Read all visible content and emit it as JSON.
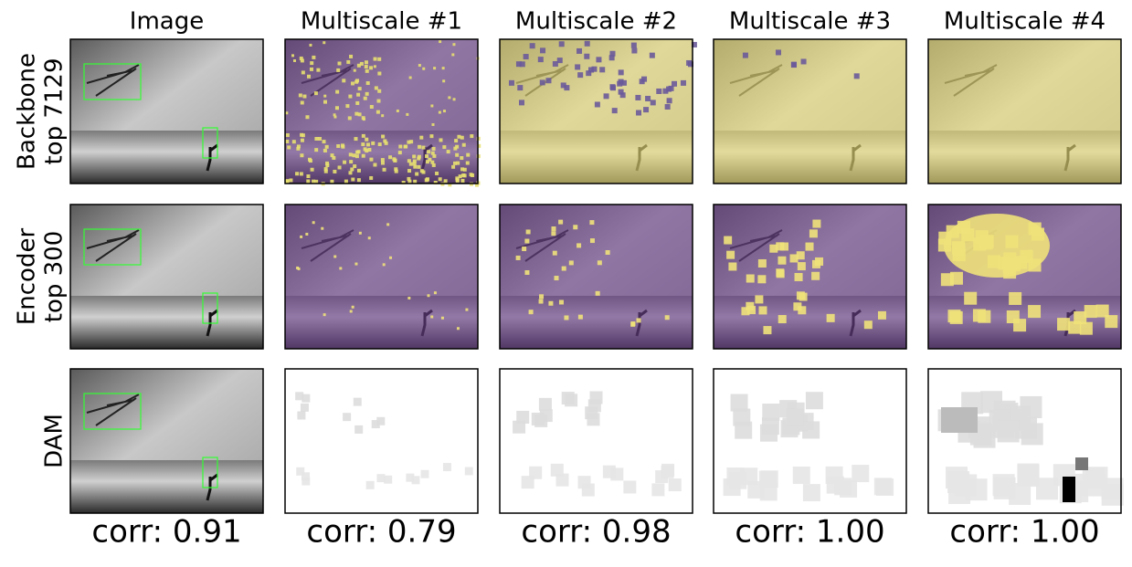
{
  "columns": [
    "Image",
    "Multiscale #1",
    "Multiscale #2",
    "Multiscale #3",
    "Multiscale #4"
  ],
  "rows": [
    {
      "label": [
        "Backbone",
        "top 7129"
      ]
    },
    {
      "label": [
        "Encoder",
        "top 300"
      ]
    },
    {
      "label": [
        "DAM"
      ]
    }
  ],
  "correlations": [
    "corr: 0.91",
    "corr: 0.79",
    "corr: 0.98",
    "corr: 1.00",
    "corr: 1.00"
  ]
}
